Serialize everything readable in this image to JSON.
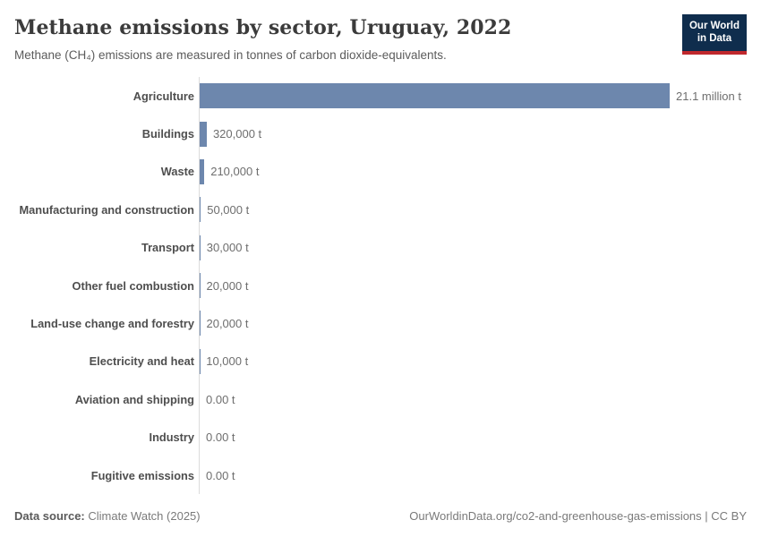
{
  "header": {
    "title": "Methane emissions by sector, Uruguay, 2022",
    "subtitle": "Methane (CH₄) emissions are measured in tonnes of carbon dioxide-equivalents.",
    "logo": {
      "line1": "Our World",
      "line2": "in Data",
      "bg_color": "#0f2d4d",
      "accent_color": "#c0282d"
    }
  },
  "chart_data": {
    "type": "bar",
    "orientation": "horizontal",
    "title": "Methane emissions by sector, Uruguay, 2022",
    "xlabel": "",
    "ylabel": "",
    "unit": "t (tonnes of carbon dioxide-equivalents)",
    "xlim": [
      0,
      21100000
    ],
    "grid": false,
    "bar_color": "#6d87ad",
    "axis_color": "#dcdcdc",
    "categories": [
      "Agriculture",
      "Buildings",
      "Waste",
      "Manufacturing and construction",
      "Transport",
      "Other fuel combustion",
      "Land-use change and forestry",
      "Electricity and heat",
      "Aviation and shipping",
      "Industry",
      "Fugitive emissions"
    ],
    "values": [
      21100000,
      320000,
      210000,
      50000,
      30000,
      20000,
      20000,
      10000,
      0,
      0,
      0
    ],
    "value_labels": [
      "21.1 million t",
      "320,000 t",
      "210,000 t",
      "50,000 t",
      "30,000 t",
      "20,000 t",
      "20,000 t",
      "10,000 t",
      "0.00 t",
      "0.00 t",
      "0.00 t"
    ]
  },
  "footer": {
    "data_source_label": "Data source:",
    "data_source_value": "Climate Watch (2025)",
    "right_text": "OurWorldinData.org/co2-and-greenhouse-gas-emissions | CC BY"
  }
}
